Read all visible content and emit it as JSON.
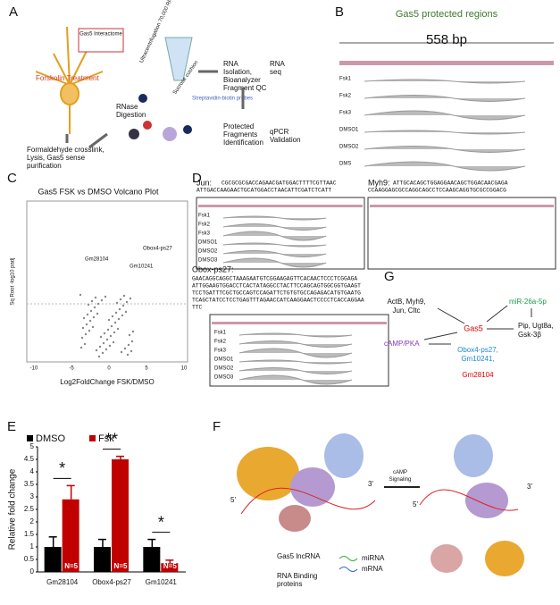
{
  "panels": {
    "A": {
      "letter": "A",
      "forskolin": "Forskolin Treatment",
      "interactome": "Gas5 Interactome",
      "ultra": "Ultracentrifugation 70,000 RPM",
      "sucrose": "Sucrose cushion",
      "probes": "Streptavidin-biotin probes",
      "rna_iso": [
        "RNA",
        "Isolation,",
        "Bioanalyzer",
        "Fragment QC"
      ],
      "rna_seq": [
        "RNA",
        "seq"
      ],
      "protected": [
        "Protected",
        "Fragments",
        "Identification"
      ],
      "qpcr": [
        "qPCR",
        "Validation"
      ],
      "crosslink": [
        "Formaldehyde crosslink,",
        "Lysis, Gas5 sense",
        "purification"
      ],
      "rnase": [
        "RNase",
        "Digestion"
      ]
    },
    "B": {
      "letter": "B",
      "title": "Gas5 protected regions",
      "length": "558 bp",
      "tracks": [
        "Fsk1",
        "Fsk2",
        "Fsk3",
        "DMSO1",
        "DMSO2",
        "DMS"
      ]
    },
    "C": {
      "letter": "C",
      "title": "Gas5 FSK vs DMSO Volcano Plot",
      "x_label": "Log2FoldChange FSK/DMSO",
      "y_label": "Sq Root -log10 padj",
      "x_ticks": [
        "-10",
        "-5",
        "0",
        "5",
        "10"
      ],
      "genes": [
        "Obox4-ps27",
        "Gm10241",
        "Gm28104"
      ]
    },
    "D": {
      "letter": "D",
      "jun": {
        "name": "Jun:",
        "seq": [
          "CGCGCGCGACCAGAACGATGGACTTTTCGTTAAC",
          "ATTGACCAAGAACTGCATGGACCTAACATTCGATCTCATT"
        ],
        "tracks": [
          "Fsk1",
          "Fsk2",
          "Fsk3",
          "DMSO1",
          "DMSO2",
          "DMSO3"
        ]
      },
      "myh9": {
        "name": "Myh9:",
        "seq": [
          "ATTGCACAGCTGGAGGAACAGCTGGACAACGAGA",
          "CCAAGGAGCGCCAGGCAGCCTCCAAGCAGGTGCGCCGGACG"
        ]
      },
      "obox": {
        "name": "Obox-ps27:",
        "seq": [
          "GAACAGGCAGGCTAAAGAATGTCGGAAGAGTTCACAACTCCCTCGGAGA",
          "ATTGGAAGTGGACCTCACTATAGGCCTACTTCCAGCAGTGGCGGTGAAGT",
          "TCCTGATTTCGCTGCCAGTCCAGATTCTGTGTGCCAGAGACATGTGAATG",
          "TCAGCTATCCTCCTGAGTTTAGAACCATCAAGGAACTCCCCTCACCAGGAA",
          "TTC"
        ],
        "tracks": [
          "Fsk1",
          "Fsk2",
          "Fsk3",
          "DMSO1",
          "DMSO2",
          "DMSO3"
        ]
      }
    },
    "E": {
      "letter": "E",
      "annotations": [
        "*",
        "**",
        "*"
      ],
      "n_labels": [
        "N=5",
        "N=5",
        "N=5"
      ]
    },
    "F": {
      "letter": "F",
      "signal": [
        "cAMP",
        "Signaling"
      ],
      "five": "5'",
      "three": "3'",
      "lnc": "Gas5 lncRNA",
      "rbp": [
        "RNA Binding",
        "proteins"
      ],
      "mirna": "miRNA",
      "mrna": "mRNA"
    },
    "G": {
      "letter": "G",
      "targets": [
        "ActB, Myh9,",
        "Jun, Cltc"
      ],
      "gas5": "Gas5",
      "mir": "miR-26a-5p",
      "down": [
        "Pip, Ugt8a,",
        "Gsk-3β"
      ],
      "camp": "cAMP/PKA",
      "up": [
        "Obox4-ps27,",
        "Gm10241,"
      ],
      "up_red": "Gm28104"
    }
  },
  "chart_data": {
    "type": "bar",
    "y_label": "Relative fold change",
    "categories": [
      "Gm28104",
      "Obox4-ps27",
      "Gm10241"
    ],
    "series": [
      {
        "name": "DMSO",
        "color": "#000000",
        "values": [
          1,
          1,
          1
        ],
        "errors": [
          0.4,
          0.3,
          0.3
        ]
      },
      {
        "name": "Fsk",
        "color": "#c00000",
        "values": [
          2.9,
          4.5,
          0.35
        ],
        "errors": [
          0.55,
          0.12,
          0.12
        ]
      }
    ],
    "ylim": [
      0,
      5
    ],
    "yticks": [
      0,
      0.5,
      1,
      1.5,
      2,
      2.5,
      3,
      3.5,
      4,
      4.5,
      5
    ]
  }
}
